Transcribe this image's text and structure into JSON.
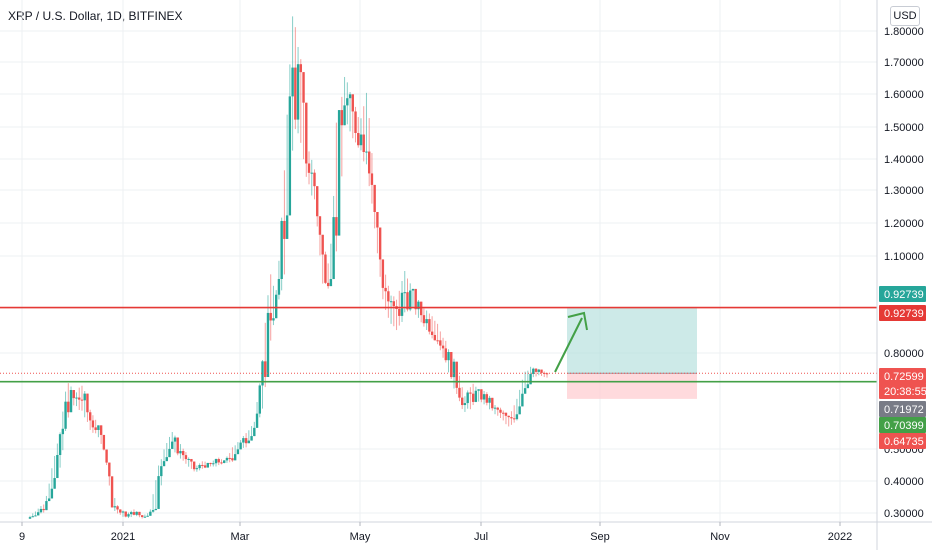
{
  "header": {
    "title": "XRP / U.S. Dollar, 1D, BITFINEX"
  },
  "currency": "USD",
  "colors": {
    "up": "#26a69a",
    "down": "#ef5350",
    "resistance": "#e53935",
    "support": "#43a047",
    "target_zone": "#b2dfdb",
    "stop_zone": "#ffcdd2",
    "arrow": "#43a047"
  },
  "chart_data": {
    "type": "candlestick",
    "x_ticks": [
      "9",
      "2021",
      "Mar",
      "May",
      "Jul",
      "Sep",
      "Nov",
      "2022"
    ],
    "y_ticks": [
      "1.80000",
      "1.70000",
      "1.60000",
      "1.50000",
      "1.40000",
      "1.30000",
      "1.20000",
      "1.10000",
      "0.80000",
      "0.50000",
      "0.40000",
      "0.30000"
    ],
    "ylim": [
      0.27,
      1.87
    ],
    "horizontal_lines": [
      {
        "name": "resistance",
        "value": 0.92739
      },
      {
        "name": "support",
        "value": 0.7
      }
    ],
    "price_badges": [
      {
        "label": "0.92739",
        "value": 0.92739,
        "color": "#26a69a"
      },
      {
        "label": "0.92739",
        "value": 0.92739,
        "color": "#e53935"
      },
      {
        "label": "0.72599",
        "value": 0.72599,
        "color": "#ef5350"
      },
      {
        "label": "20:38:55",
        "value": 0.6873,
        "color": "#ef5350"
      },
      {
        "label": "0.71972",
        "value": 0.6435,
        "color": "#787b86"
      },
      {
        "label": "0.70399",
        "value": 0.609,
        "color": "#43a047"
      },
      {
        "label": "0.64735",
        "value": 0.5745,
        "color": "#ef5350"
      }
    ],
    "trade_box": {
      "entry": 0.72599,
      "target": 0.92739,
      "stop": 0.64735
    },
    "price_path": [
      [
        0.29,
        0.28
      ],
      [
        0.31,
        0.29
      ],
      [
        0.33,
        0.3
      ],
      [
        0.45,
        0.36
      ],
      [
        0.55,
        0.43
      ],
      [
        0.72,
        0.58
      ],
      [
        0.66,
        0.63
      ],
      [
        0.7,
        0.6
      ],
      [
        0.62,
        0.55
      ],
      [
        0.58,
        0.53
      ],
      [
        0.52,
        0.48
      ],
      [
        0.36,
        0.3
      ],
      [
        0.31,
        0.29
      ],
      [
        0.3,
        0.28
      ],
      [
        0.31,
        0.29
      ],
      [
        0.29,
        0.28
      ],
      [
        0.3,
        0.29
      ],
      [
        0.44,
        0.3
      ],
      [
        0.5,
        0.45
      ],
      [
        0.55,
        0.49
      ],
      [
        0.52,
        0.46
      ],
      [
        0.48,
        0.44
      ],
      [
        0.44,
        0.42
      ],
      [
        0.46,
        0.43
      ],
      [
        0.45,
        0.44
      ],
      [
        0.47,
        0.44
      ],
      [
        0.46,
        0.45
      ],
      [
        0.5,
        0.45
      ],
      [
        0.52,
        0.49
      ],
      [
        0.55,
        0.5
      ],
      [
        0.58,
        0.55
      ],
      [
        0.78,
        0.6
      ],
      [
        1.05,
        0.8
      ],
      [
        0.98,
        0.92
      ],
      [
        1.4,
        1.0
      ],
      [
        1.85,
        1.4
      ],
      [
        1.75,
        1.45
      ],
      [
        1.45,
        1.3
      ],
      [
        1.35,
        1.25
      ],
      [
        1.15,
        1.0
      ],
      [
        1.05,
        0.98
      ],
      [
        1.55,
        1.05
      ],
      [
        1.65,
        1.5
      ],
      [
        1.58,
        1.45
      ],
      [
        1.5,
        1.4
      ],
      [
        1.6,
        1.35
      ],
      [
        1.3,
        1.15
      ],
      [
        1.1,
        0.95
      ],
      [
        0.98,
        0.88
      ],
      [
        0.95,
        0.85
      ],
      [
        1.05,
        0.9
      ],
      [
        1.0,
        0.92
      ],
      [
        0.95,
        0.88
      ],
      [
        0.92,
        0.85
      ],
      [
        0.9,
        0.82
      ],
      [
        0.85,
        0.78
      ],
      [
        0.8,
        0.72
      ],
      [
        0.75,
        0.65
      ],
      [
        0.66,
        0.6
      ],
      [
        0.7,
        0.62
      ],
      [
        0.68,
        0.64
      ],
      [
        0.67,
        0.62
      ],
      [
        0.63,
        0.6
      ],
      [
        0.62,
        0.58
      ],
      [
        0.6,
        0.56
      ],
      [
        0.65,
        0.58
      ],
      [
        0.73,
        0.66
      ],
      [
        0.75,
        0.71
      ],
      [
        0.74,
        0.72
      ],
      [
        0.73,
        0.71
      ]
    ]
  }
}
